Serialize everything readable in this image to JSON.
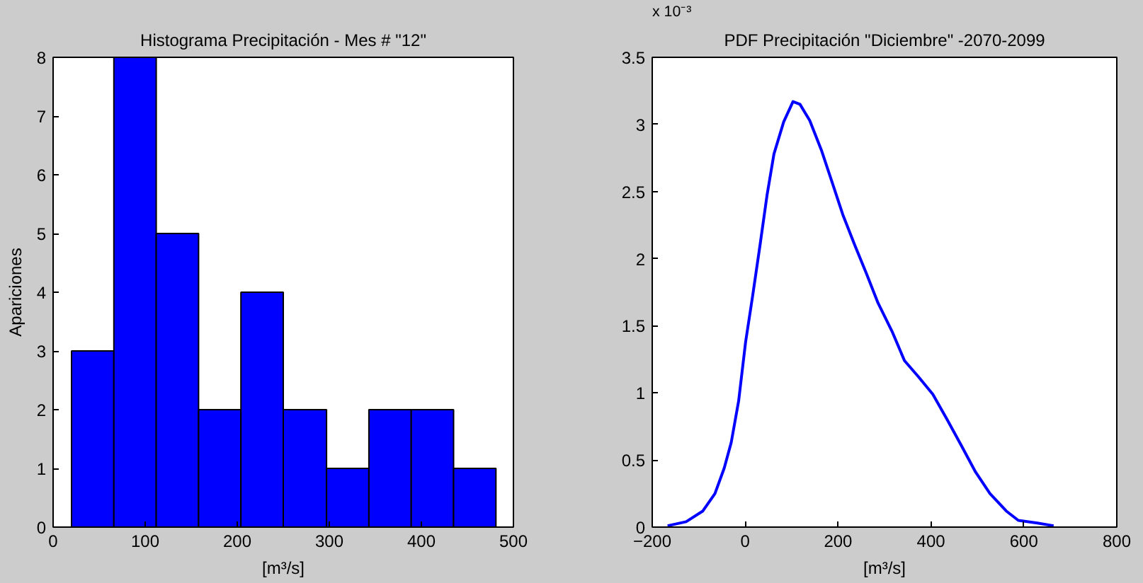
{
  "chart_data": [
    {
      "type": "histogram",
      "title": "Histograma Precipitación - Mes # \"12\"",
      "xlabel": "[m³/s]",
      "ylabel": "Apariciones",
      "color": "#0000ff",
      "bins": [
        20,
        66,
        112,
        158,
        204,
        250,
        297,
        343,
        389,
        435,
        481
      ],
      "values": [
        3,
        8,
        5,
        2,
        4,
        2,
        1,
        2,
        2,
        1
      ],
      "xlim": [
        0,
        500
      ],
      "xticks": [
        0,
        100,
        200,
        300,
        400,
        500
      ],
      "ylim": [
        0,
        8
      ],
      "yticks": [
        0,
        1,
        2,
        3,
        4,
        5,
        6,
        7,
        8
      ],
      "grid": false
    },
    {
      "type": "line",
      "title": "PDF Precipitación \"Diciembre\" -2070-2099",
      "xlabel": "[m³/s]",
      "annotations": [
        "x 10⁻³"
      ],
      "series": [
        {
          "color": "#0000ff",
          "x": [
            -167,
            -127,
            -91,
            -65,
            -45,
            -30,
            -14,
            1,
            16,
            32,
            47,
            62,
            83,
            103,
            118,
            139,
            164,
            190,
            210,
            236,
            261,
            286,
            316,
            343,
            373,
            404,
            435,
            465,
            496,
            527,
            562,
            588,
            629,
            664
          ],
          "values": [
            0.01,
            0.04,
            0.12,
            0.25,
            0.44,
            0.63,
            0.94,
            1.38,
            1.72,
            2.1,
            2.47,
            2.78,
            3.02,
            3.17,
            3.15,
            3.03,
            2.81,
            2.54,
            2.33,
            2.1,
            1.89,
            1.67,
            1.46,
            1.24,
            1.12,
            0.99,
            0.8,
            0.61,
            0.41,
            0.25,
            0.12,
            0.05,
            0.03,
            0.01
          ]
        }
      ],
      "xlim": [
        -200,
        800
      ],
      "xticks": [
        -200,
        0,
        200,
        400,
        600,
        800
      ],
      "ylim": [
        0,
        3.5
      ],
      "yticks": [
        0,
        0.5,
        1,
        1.5,
        2,
        2.5,
        3,
        3.5
      ],
      "grid": false,
      "line_style": "solid"
    }
  ]
}
